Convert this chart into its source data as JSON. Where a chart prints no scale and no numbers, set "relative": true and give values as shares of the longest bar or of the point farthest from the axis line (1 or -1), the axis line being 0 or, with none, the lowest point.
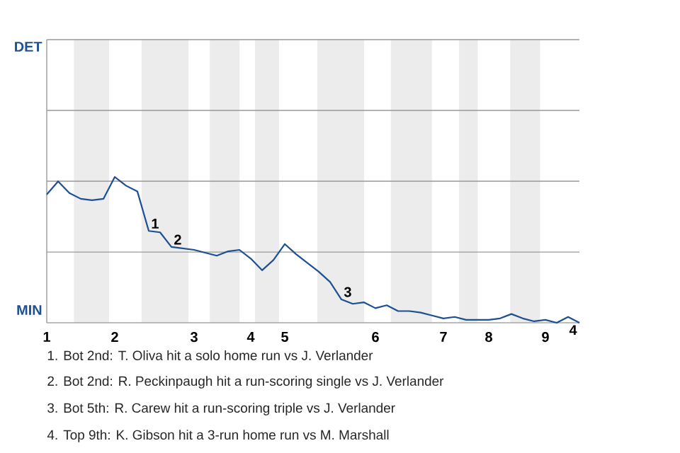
{
  "chart_data": {
    "type": "line",
    "relative": true,
    "marker": "none",
    "line_style": "solid",
    "ref_lines": [
      {
        "axis": "y",
        "value": 0.485,
        "color": "#999999"
      },
      {
        "axis": "y",
        "value": 0.971,
        "color": "#999999"
      }
    ],
    "categories": [
      "1",
      null,
      null,
      null,
      null,
      null,
      "2",
      null,
      null,
      null,
      null,
      null,
      null,
      "3",
      null,
      null,
      null,
      null,
      "4",
      null,
      null,
      "5",
      null,
      null,
      null,
      null,
      null,
      null,
      null,
      "6",
      null,
      null,
      null,
      null,
      null,
      "7",
      null,
      null,
      null,
      "8",
      null,
      null,
      null,
      null,
      "9",
      null,
      null,
      null
    ],
    "series": [
      {
        "color": "#1d4f91",
        "values": [
          0.88,
          0.97,
          0.89,
          0.85,
          0.84,
          0.85,
          1,
          0.94,
          0.9,
          0.63,
          0.62,
          0.52,
          0.51,
          0.5,
          0.48,
          0.46,
          0.49,
          0.5,
          0.44,
          0.36,
          0.43,
          0.54,
          0.47,
          0.41,
          0.35,
          0.28,
          0.16,
          0.13,
          0.14,
          0.1,
          0.12,
          0.08,
          0.08,
          0.07,
          0.05,
          0.03,
          0.04,
          0.02,
          0.02,
          0.02,
          0.03,
          0.06,
          0.03,
          0.01,
          0.02,
          0,
          0.04,
          0
        ]
      }
    ],
    "annotations": [
      "DET",
      "MIN",
      {
        "text": "1",
        "y": 0.63
      },
      {
        "text": "2",
        "y": 0.52
      },
      {
        "text": "3",
        "y": 0.16
      },
      {
        "text": "4",
        "y": 0
      },
      "1. Bot 2nd: T. Oliva hit a solo home run vs J. Verlander",
      "2. Bot 2nd: R. Peckinpaugh hit a run-scoring single vs J. Verlander",
      "3. Bot 5th: R. Carew hit a run-scoring triple vs J. Verlander",
      "4. Top 9th: K. Gibson hit a 3-run home run vs M. Marshall"
    ]
  }
}
